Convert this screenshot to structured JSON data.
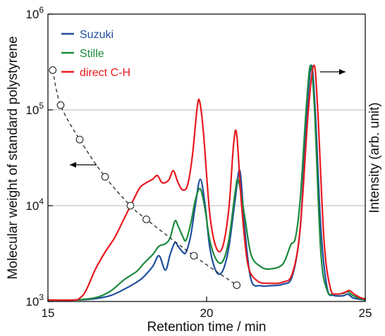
{
  "chart_data": {
    "type": "line",
    "xlabel": "Retention time / min",
    "ylabel_left": "Molecular weight of standard polystyrene",
    "ylabel_right": "Intensity (arb. unit)",
    "xlim": [
      15,
      25
    ],
    "ylim_left": [
      1000,
      1000000
    ],
    "y_scale_left": "log",
    "x_ticks": [
      {
        "value": 15,
        "label": "15"
      },
      {
        "value": 20,
        "label": "20"
      },
      {
        "value": 25,
        "label": "25"
      }
    ],
    "y_ticks": [
      {
        "value": 1000,
        "base": "10",
        "exp": "3"
      },
      {
        "value": 10000,
        "base": "10",
        "exp": "4"
      },
      {
        "value": 100000,
        "base": "10",
        "exp": "5"
      },
      {
        "value": 1000000,
        "base": "10",
        "exp": "6"
      }
    ],
    "gridlines": [
      10000,
      100000
    ],
    "calibration": {
      "style": "dashed with open circles",
      "axis": "left",
      "points": [
        {
          "x": 15.15,
          "y": 260000
        },
        {
          "x": 15.4,
          "y": 112000
        },
        {
          "x": 16.0,
          "y": 49000
        },
        {
          "x": 16.8,
          "y": 20000
        },
        {
          "x": 17.6,
          "y": 10000
        },
        {
          "x": 18.1,
          "y": 7200
        },
        {
          "x": 19.6,
          "y": 3000
        },
        {
          "x": 20.95,
          "y": 1480
        }
      ]
    },
    "series_axis": "right (relative intensity, 0 = baseline, 1 = tallest peak)",
    "series": [
      {
        "name": "Suzuki",
        "color": "#1f4e9e",
        "points": [
          [
            15,
            0
          ],
          [
            15.8,
            0
          ],
          [
            16.2,
            0.002
          ],
          [
            16.6,
            0.008
          ],
          [
            17.0,
            0.02
          ],
          [
            17.4,
            0.045
          ],
          [
            17.8,
            0.075
          ],
          [
            18.0,
            0.095
          ],
          [
            18.3,
            0.14
          ],
          [
            18.5,
            0.185
          ],
          [
            18.7,
            0.125
          ],
          [
            18.85,
            0.19
          ],
          [
            19.0,
            0.24
          ],
          [
            19.1,
            0.225
          ],
          [
            19.25,
            0.2
          ],
          [
            19.35,
            0.2
          ],
          [
            19.5,
            0.27
          ],
          [
            19.65,
            0.4
          ],
          [
            19.8,
            0.505
          ],
          [
            19.95,
            0.4
          ],
          [
            20.1,
            0.22
          ],
          [
            20.3,
            0.12
          ],
          [
            20.5,
            0.12
          ],
          [
            20.7,
            0.22
          ],
          [
            20.9,
            0.42
          ],
          [
            21.05,
            0.54
          ],
          [
            21.2,
            0.3
          ],
          [
            21.4,
            0.085
          ],
          [
            21.7,
            0.06
          ],
          [
            22.0,
            0.06
          ],
          [
            22.4,
            0.066
          ],
          [
            22.7,
            0.1
          ],
          [
            22.95,
            0.3
          ],
          [
            23.15,
            0.76
          ],
          [
            23.3,
            0.98
          ],
          [
            23.42,
            0.8
          ],
          [
            23.6,
            0.3
          ],
          [
            23.8,
            0.05
          ],
          [
            24.0,
            0.02
          ],
          [
            24.3,
            0.018
          ],
          [
            24.45,
            0.025
          ],
          [
            24.6,
            0.01
          ],
          [
            24.8,
            0.004
          ],
          [
            25,
            0
          ]
        ]
      },
      {
        "name": "Stille",
        "color": "#1a8a3c",
        "points": [
          [
            15,
            0
          ],
          [
            15.8,
            0
          ],
          [
            16.2,
            0.004
          ],
          [
            16.6,
            0.014
          ],
          [
            17.0,
            0.04
          ],
          [
            17.4,
            0.085
          ],
          [
            17.8,
            0.12
          ],
          [
            18.0,
            0.15
          ],
          [
            18.3,
            0.19
          ],
          [
            18.5,
            0.225
          ],
          [
            18.7,
            0.235
          ],
          [
            18.85,
            0.26
          ],
          [
            19.0,
            0.33
          ],
          [
            19.1,
            0.31
          ],
          [
            19.25,
            0.265
          ],
          [
            19.35,
            0.25
          ],
          [
            19.5,
            0.32
          ],
          [
            19.65,
            0.42
          ],
          [
            19.8,
            0.465
          ],
          [
            19.95,
            0.38
          ],
          [
            20.1,
            0.25
          ],
          [
            20.3,
            0.17
          ],
          [
            20.5,
            0.16
          ],
          [
            20.7,
            0.25
          ],
          [
            20.9,
            0.45
          ],
          [
            21.0,
            0.5
          ],
          [
            21.2,
            0.35
          ],
          [
            21.4,
            0.19
          ],
          [
            21.7,
            0.14
          ],
          [
            22.0,
            0.13
          ],
          [
            22.4,
            0.15
          ],
          [
            22.65,
            0.23
          ],
          [
            22.8,
            0.26
          ],
          [
            22.95,
            0.42
          ],
          [
            23.15,
            0.82
          ],
          [
            23.28,
            0.98
          ],
          [
            23.4,
            0.8
          ],
          [
            23.6,
            0.2
          ],
          [
            23.8,
            0.04
          ],
          [
            24.0,
            0.025
          ],
          [
            24.3,
            0.028
          ],
          [
            24.45,
            0.035
          ],
          [
            24.6,
            0.02
          ],
          [
            24.8,
            0.008
          ],
          [
            25,
            0
          ]
        ]
      },
      {
        "name": "direct C-H",
        "color": "#e8191f",
        "points": [
          [
            15,
            0
          ],
          [
            15.8,
            0
          ],
          [
            16.0,
            0.008
          ],
          [
            16.2,
            0.04
          ],
          [
            16.5,
            0.13
          ],
          [
            16.8,
            0.2
          ],
          [
            17.1,
            0.26
          ],
          [
            17.4,
            0.34
          ],
          [
            17.7,
            0.42
          ],
          [
            17.9,
            0.47
          ],
          [
            18.1,
            0.49
          ],
          [
            18.3,
            0.505
          ],
          [
            18.45,
            0.52
          ],
          [
            18.6,
            0.49
          ],
          [
            18.8,
            0.5
          ],
          [
            18.95,
            0.54
          ],
          [
            19.1,
            0.49
          ],
          [
            19.25,
            0.46
          ],
          [
            19.4,
            0.48
          ],
          [
            19.55,
            0.6
          ],
          [
            19.7,
            0.8
          ],
          [
            19.78,
            0.83
          ],
          [
            19.9,
            0.7
          ],
          [
            20.1,
            0.36
          ],
          [
            20.3,
            0.22
          ],
          [
            20.5,
            0.22
          ],
          [
            20.7,
            0.38
          ],
          [
            20.85,
            0.65
          ],
          [
            20.95,
            0.69
          ],
          [
            21.1,
            0.4
          ],
          [
            21.3,
            0.15
          ],
          [
            21.6,
            0.08
          ],
          [
            22.0,
            0.07
          ],
          [
            22.4,
            0.075
          ],
          [
            22.7,
            0.11
          ],
          [
            22.95,
            0.3
          ],
          [
            23.2,
            0.78
          ],
          [
            23.38,
            0.98
          ],
          [
            23.5,
            0.8
          ],
          [
            23.7,
            0.25
          ],
          [
            23.9,
            0.05
          ],
          [
            24.1,
            0.025
          ],
          [
            24.35,
            0.032
          ],
          [
            24.5,
            0.04
          ],
          [
            24.65,
            0.025
          ],
          [
            24.85,
            0.01
          ],
          [
            25,
            0.005
          ]
        ]
      }
    ],
    "legend": {
      "position": "top-left"
    },
    "annotations": [
      {
        "type": "arrow",
        "direction": "left",
        "meaning": "calibration curve refers to left axis"
      },
      {
        "type": "arrow",
        "direction": "right",
        "meaning": "chromatograms refer to right axis"
      }
    ]
  }
}
